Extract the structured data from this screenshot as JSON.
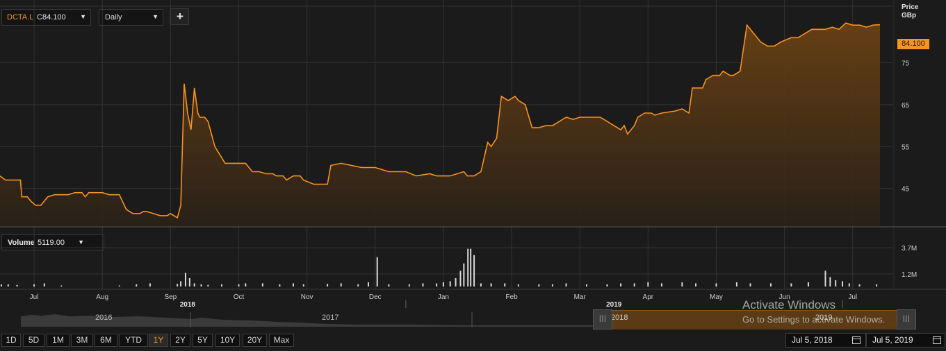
{
  "symbol": {
    "ticker": "DCTA.L",
    "close_label": "C",
    "close_value": "84.100"
  },
  "interval": {
    "selected": "Daily"
  },
  "add_button": {
    "label": "+"
  },
  "price_axis": {
    "title_line1": "Price",
    "title_line2": "GBp",
    "current_price": "84.100"
  },
  "volume": {
    "label": "Volume",
    "value": "5119.00"
  },
  "navigator": {
    "years": [
      "2016",
      "2017",
      "2018",
      "2019"
    ]
  },
  "range_buttons": [
    {
      "label": "1D",
      "active": false
    },
    {
      "label": "5D",
      "active": false
    },
    {
      "label": "1M",
      "active": false
    },
    {
      "label": "3M",
      "active": false
    },
    {
      "label": "6M",
      "active": false
    },
    {
      "label": "YTD",
      "active": false
    },
    {
      "label": "1Y",
      "active": true
    },
    {
      "label": "2Y",
      "active": false
    },
    {
      "label": "5Y",
      "active": false
    },
    {
      "label": "10Y",
      "active": false
    },
    {
      "label": "20Y",
      "active": false
    },
    {
      "label": "Max",
      "active": false
    }
  ],
  "date_range": {
    "from": "Jul 5, 2018",
    "to": "Jul 5, 2019"
  },
  "watermark": {
    "line1": "Activate Windows",
    "line2": "Go to Settings to activate Windows."
  },
  "colors": {
    "accent": "#f7931e",
    "background": "#1b1b1b",
    "grid": "#333333"
  },
  "chart_data": [
    {
      "type": "area",
      "title": "",
      "ylabel": "Price GBp",
      "ylim": [
        36,
        90
      ],
      "yticks": [
        45,
        55,
        65,
        75
      ],
      "ytick_labels": [
        "45",
        "55",
        "65",
        "75"
      ],
      "months": [
        {
          "label": "Jul",
          "t": 0.5
        },
        {
          "label": "Aug",
          "t": 1.5
        },
        {
          "label": "Sep",
          "t": 2.5
        },
        {
          "label": "Oct",
          "t": 3.5
        },
        {
          "label": "Nov",
          "t": 4.5
        },
        {
          "label": "Dec",
          "t": 5.5
        },
        {
          "label": "Jan",
          "t": 6.5
        },
        {
          "label": "Feb",
          "t": 7.5
        },
        {
          "label": "Mar",
          "t": 8.5
        },
        {
          "label": "Apr",
          "t": 9.5
        },
        {
          "label": "May",
          "t": 10.5
        },
        {
          "label": "Jun",
          "t": 11.5
        },
        {
          "label": "Jul",
          "t": 12.5
        }
      ],
      "year_labels": [
        {
          "label": "2018",
          "t": 2.75
        },
        {
          "label": "2019",
          "t": 9.0
        }
      ],
      "series": [
        {
          "x": [
            0,
            0.08,
            0.15,
            0.3,
            0.32,
            0.4,
            0.45,
            0.52,
            0.6,
            0.7,
            0.8,
            1.0,
            1.1,
            1.2,
            1.25,
            1.3,
            1.5,
            1.6,
            1.75,
            1.85,
            1.95,
            2.05,
            2.1,
            2.15,
            2.25,
            2.35,
            2.45,
            2.5,
            2.6,
            2.65,
            2.7,
            2.75,
            2.8,
            2.85,
            2.9,
            2.93,
            3.0,
            3.05,
            3.15,
            3.3,
            3.35,
            3.6,
            3.7,
            3.8,
            3.9,
            4.0,
            4.05,
            4.15,
            4.2,
            4.3,
            4.4,
            4.45,
            4.6,
            4.8,
            4.85,
            5.0,
            5.3,
            5.45,
            5.5,
            5.7,
            5.95,
            6.1,
            6.3,
            6.4,
            6.6,
            6.7,
            6.8,
            6.85,
            6.95,
            7.05,
            7.15,
            7.2,
            7.28,
            7.35,
            7.45,
            7.55,
            7.6,
            7.7,
            7.8,
            7.9,
            8.0,
            8.1,
            8.3,
            8.4,
            8.5,
            8.6,
            8.8,
            9.0,
            9.1,
            9.15,
            9.2,
            9.3,
            9.35,
            9.45,
            9.55,
            9.6,
            9.7,
            9.9,
            10.0,
            10.1,
            10.15,
            10.3,
            10.35,
            10.45,
            10.55,
            10.6,
            10.7,
            10.75,
            10.85,
            10.95,
            11.05,
            11.15,
            11.25,
            11.35,
            11.45,
            11.6,
            11.7,
            11.8,
            11.9,
            12.0,
            12.1,
            12.2,
            12.3,
            12.4,
            12.5,
            12.6,
            12.7,
            12.8,
            12.9
          ],
          "y": [
            48,
            47,
            47,
            47,
            43,
            43,
            42,
            41,
            41,
            43,
            43.5,
            43.5,
            44,
            44,
            43,
            44,
            44,
            43.5,
            43.5,
            40,
            39,
            39,
            39.5,
            39.5,
            39,
            38.5,
            38.5,
            39,
            38,
            41,
            70,
            63,
            59,
            69,
            63,
            62,
            62,
            61,
            55,
            51,
            51,
            51,
            49,
            49,
            48.5,
            48.5,
            48,
            48,
            47,
            48,
            48,
            47,
            46,
            46,
            50.5,
            51,
            50,
            50,
            50,
            49,
            49,
            48,
            48.5,
            48,
            48,
            48.5,
            49,
            48,
            48,
            49,
            56,
            55,
            57,
            67,
            66,
            67,
            66,
            65,
            59.5,
            59.5,
            60,
            60,
            62,
            61.5,
            62,
            62,
            62,
            60,
            59,
            60,
            58,
            60,
            62,
            63,
            63,
            62.5,
            63,
            63.5,
            64,
            63,
            69,
            69,
            71,
            72,
            72,
            73,
            72,
            72,
            73,
            84,
            82,
            80,
            79,
            79,
            80,
            81,
            81,
            82,
            83,
            83,
            83,
            83.5,
            83,
            84.5,
            84,
            84,
            83.5,
            84,
            84.1
          ]
        }
      ]
    },
    {
      "type": "bar",
      "title": "",
      "ylabel": "Volume",
      "ylim": [
        0,
        4.5
      ],
      "yticks": [
        1.2,
        3.7
      ],
      "ytick_labels": [
        "1.2M",
        "3.7M"
      ],
      "bars": [
        {
          "t": 0.02,
          "v": 0.2
        },
        {
          "t": 0.12,
          "v": 0.2
        },
        {
          "t": 0.25,
          "v": 0.15
        },
        {
          "t": 0.5,
          "v": 0.2
        },
        {
          "t": 0.65,
          "v": 0.3
        },
        {
          "t": 0.9,
          "v": 0.1
        },
        {
          "t": 1.75,
          "v": 0.1
        },
        {
          "t": 2.0,
          "v": 0.2
        },
        {
          "t": 2.2,
          "v": 0.3
        },
        {
          "t": 2.6,
          "v": 0.25
        },
        {
          "t": 2.65,
          "v": 0.5
        },
        {
          "t": 2.72,
          "v": 1.3
        },
        {
          "t": 2.78,
          "v": 0.8
        },
        {
          "t": 2.85,
          "v": 0.3
        },
        {
          "t": 2.95,
          "v": 0.2
        },
        {
          "t": 3.05,
          "v": 0.15
        },
        {
          "t": 3.25,
          "v": 0.2
        },
        {
          "t": 3.5,
          "v": 0.2
        },
        {
          "t": 3.6,
          "v": 0.3
        },
        {
          "t": 3.85,
          "v": 0.3
        },
        {
          "t": 4.1,
          "v": 0.2
        },
        {
          "t": 4.3,
          "v": 0.3
        },
        {
          "t": 4.45,
          "v": 0.2
        },
        {
          "t": 4.8,
          "v": 0.25
        },
        {
          "t": 5.0,
          "v": 0.3
        },
        {
          "t": 5.25,
          "v": 0.2
        },
        {
          "t": 5.4,
          "v": 0.4
        },
        {
          "t": 5.53,
          "v": 2.8
        },
        {
          "t": 5.7,
          "v": 0.2
        },
        {
          "t": 6.0,
          "v": 0.2
        },
        {
          "t": 6.2,
          "v": 0.3
        },
        {
          "t": 6.4,
          "v": 0.3
        },
        {
          "t": 6.5,
          "v": 0.4
        },
        {
          "t": 6.6,
          "v": 0.5
        },
        {
          "t": 6.68,
          "v": 0.8
        },
        {
          "t": 6.75,
          "v": 1.5
        },
        {
          "t": 6.8,
          "v": 2.2
        },
        {
          "t": 6.86,
          "v": 3.6
        },
        {
          "t": 6.9,
          "v": 3.6
        },
        {
          "t": 6.95,
          "v": 3.0
        },
        {
          "t": 7.05,
          "v": 0.3
        },
        {
          "t": 7.2,
          "v": 0.3
        },
        {
          "t": 7.4,
          "v": 0.3
        },
        {
          "t": 7.6,
          "v": 0.2
        },
        {
          "t": 7.9,
          "v": 0.2
        },
        {
          "t": 8.1,
          "v": 0.2
        },
        {
          "t": 8.3,
          "v": 0.3
        },
        {
          "t": 8.6,
          "v": 0.2
        },
        {
          "t": 8.9,
          "v": 0.2
        },
        {
          "t": 9.1,
          "v": 0.3
        },
        {
          "t": 9.3,
          "v": 0.3
        },
        {
          "t": 9.5,
          "v": 0.4
        },
        {
          "t": 9.7,
          "v": 0.3
        },
        {
          "t": 10.0,
          "v": 0.4
        },
        {
          "t": 10.2,
          "v": 0.3
        },
        {
          "t": 10.5,
          "v": 0.3
        },
        {
          "t": 10.8,
          "v": 0.4
        },
        {
          "t": 11.0,
          "v": 0.3
        },
        {
          "t": 11.3,
          "v": 0.3
        },
        {
          "t": 11.6,
          "v": 0.3
        },
        {
          "t": 11.85,
          "v": 0.4
        },
        {
          "t": 12.1,
          "v": 1.5
        },
        {
          "t": 12.17,
          "v": 0.9
        },
        {
          "t": 12.25,
          "v": 0.6
        },
        {
          "t": 12.35,
          "v": 0.5
        },
        {
          "t": 12.45,
          "v": 0.3
        },
        {
          "t": 12.6,
          "v": 0.2
        },
        {
          "t": 12.85,
          "v": 0.2
        }
      ]
    }
  ]
}
